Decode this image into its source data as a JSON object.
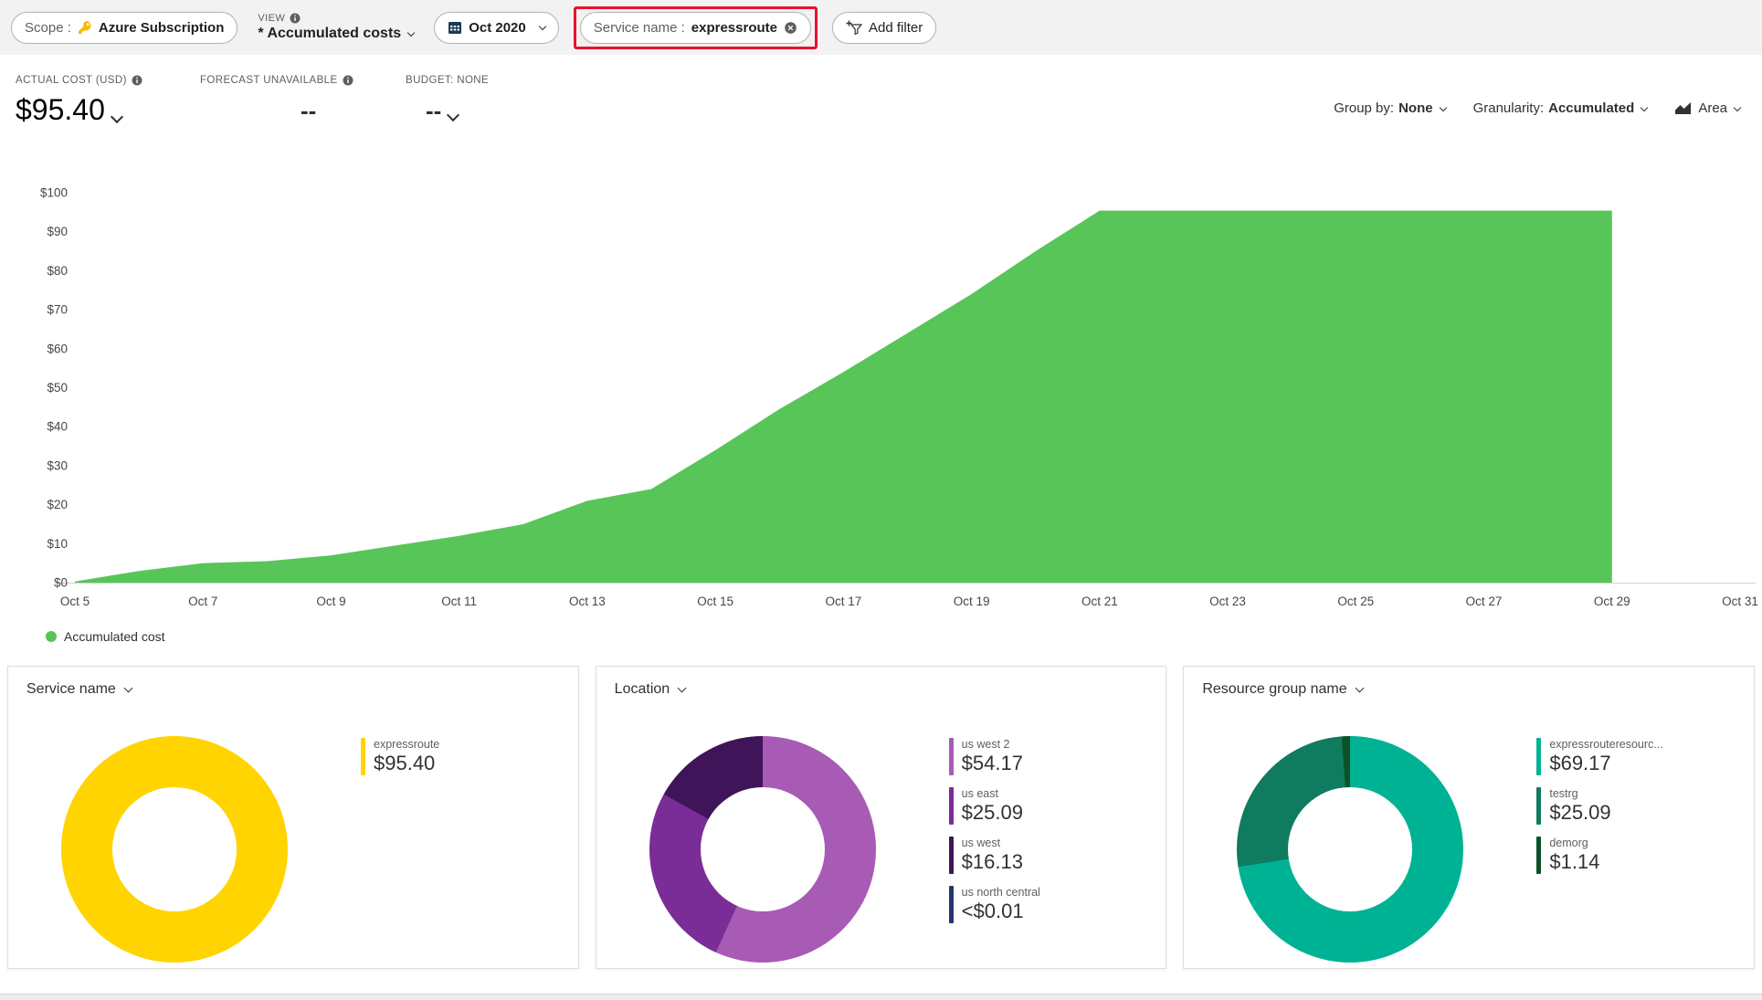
{
  "toolbar": {
    "scope_label": "Scope :",
    "scope_value": "Azure Subscription",
    "view_label": "VIEW",
    "view_value": "* Accumulated costs",
    "date_value": "Oct 2020",
    "filter_label": "Service name :",
    "filter_value": "expressroute",
    "add_filter_label": "Add filter"
  },
  "kpis": {
    "actual_label": "ACTUAL COST (USD)",
    "actual_value": "$95.40",
    "forecast_label": "FORECAST UNAVAILABLE",
    "forecast_value": "--",
    "budget_label": "BUDGET: NONE",
    "budget_value": "--"
  },
  "controls": {
    "group_by_label": "Group by:",
    "group_by_value": "None",
    "granularity_label": "Granularity:",
    "granularity_value": "Accumulated",
    "chart_type_value": "Area"
  },
  "main_legend": "Accumulated cost",
  "colors": {
    "area_green": "#58c558",
    "highlight_red": "#e8112d",
    "toolbar_bg": "#f2f2f2"
  },
  "chart_data": [
    {
      "type": "area",
      "title": "Accumulated cost",
      "color": "#58c558",
      "ylim": [
        0,
        100
      ],
      "y_ticks": [
        "$0",
        "$10",
        "$20",
        "$30",
        "$40",
        "$50",
        "$60",
        "$70",
        "$80",
        "$90",
        "$100"
      ],
      "x_total_days": 26,
      "x": [
        "Oct 5",
        "Oct 6",
        "Oct 7",
        "Oct 8",
        "Oct 9",
        "Oct 10",
        "Oct 11",
        "Oct 12",
        "Oct 13",
        "Oct 14",
        "Oct 15",
        "Oct 16",
        "Oct 17",
        "Oct 18",
        "Oct 19",
        "Oct 20",
        "Oct 21",
        "Oct 22",
        "Oct 23",
        "Oct 24",
        "Oct 25",
        "Oct 26",
        "Oct 27",
        "Oct 28",
        "Oct 29"
      ],
      "values": [
        0.3,
        3,
        5,
        5.5,
        7,
        9.5,
        12,
        15,
        21,
        24,
        34,
        44.5,
        54,
        64,
        74,
        85,
        95.4,
        95.4,
        95.4,
        95.4,
        95.4,
        95.4,
        95.4,
        95.4,
        95.4
      ],
      "x_ticks": [
        {
          "label": "Oct 5",
          "day": 0
        },
        {
          "label": "Oct 7",
          "day": 2
        },
        {
          "label": "Oct 9",
          "day": 4
        },
        {
          "label": "Oct 11",
          "day": 6
        },
        {
          "label": "Oct 13",
          "day": 8
        },
        {
          "label": "Oct 15",
          "day": 10
        },
        {
          "label": "Oct 17",
          "day": 12
        },
        {
          "label": "Oct 19",
          "day": 14
        },
        {
          "label": "Oct 21",
          "day": 16
        },
        {
          "label": "Oct 23",
          "day": 18
        },
        {
          "label": "Oct 25",
          "day": 20
        },
        {
          "label": "Oct 27",
          "day": 22
        },
        {
          "label": "Oct 29",
          "day": 24
        },
        {
          "label": "Oct 31",
          "day": 26
        }
      ]
    },
    {
      "type": "donut",
      "title": "Service name",
      "slices": [
        {
          "label": "expressroute",
          "value": 95.4,
          "value_label": "$95.40",
          "color": "#ffd400"
        }
      ]
    },
    {
      "type": "donut",
      "title": "Location",
      "slices": [
        {
          "label": "us west 2",
          "value": 54.17,
          "value_label": "$54.17",
          "color": "#a75bb5"
        },
        {
          "label": "us east",
          "value": 25.09,
          "value_label": "$25.09",
          "color": "#7a2d96"
        },
        {
          "label": "us west",
          "value": 16.13,
          "value_label": "$16.13",
          "color": "#3f1458"
        },
        {
          "label": "us north central",
          "value": 0.01,
          "value_label": "<$0.01",
          "color": "#27356e"
        }
      ]
    },
    {
      "type": "donut",
      "title": "Resource group name",
      "slices": [
        {
          "label": "expressrouteresourc...",
          "value": 69.17,
          "value_label": "$69.17",
          "color": "#00b294"
        },
        {
          "label": "testrg",
          "value": 25.09,
          "value_label": "$25.09",
          "color": "#0f7b5f"
        },
        {
          "label": "demorg",
          "value": 1.14,
          "value_label": "$1.14",
          "color": "#0b5229"
        }
      ]
    }
  ]
}
